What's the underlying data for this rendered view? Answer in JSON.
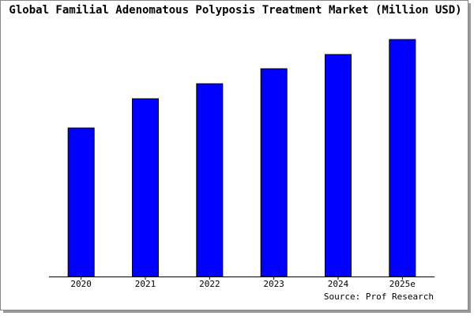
{
  "chart_data": {
    "type": "bar",
    "title": "Global Familial Adenomatous Polyposis Treatment Market (Million USD)",
    "source": "Source: Prof Research",
    "categories": [
      "2020",
      "2021",
      "2022",
      "2023",
      "2024",
      "2025e"
    ],
    "values": [
      188,
      225,
      244,
      263,
      281,
      300
    ],
    "color": "#0000ff",
    "ylim": [
      0,
      310
    ]
  }
}
